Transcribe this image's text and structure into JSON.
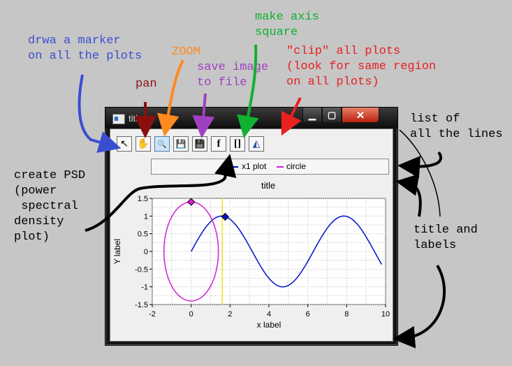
{
  "annotations": {
    "marker": "drwa a marker\non all the plots",
    "pan": "pan",
    "zoom": "ZOOM",
    "save": "save image\nto file",
    "square": "make axis\nsquare",
    "clip": "\"clip\" all plots\n(look for same region\non all plots)",
    "lines": "list of\nall the lines",
    "psd": "create PSD\n(power\n spectral\ndensity\nplot)",
    "labels": "title and\nlabels"
  },
  "annotation_colors": {
    "marker": "#3a4fd0",
    "pan": "#8a1010",
    "zoom": "#ff8a20",
    "save": "#a040c0",
    "square": "#10b030",
    "clip": "#e82020",
    "black": "#000000"
  },
  "window": {
    "title": "title",
    "buttons": {
      "min": "▁",
      "max": "▢",
      "close": "✕"
    }
  },
  "toolbar": {
    "tools": [
      {
        "name": "marker-button",
        "icon": "arrow-cursor-icon",
        "glyph": "↖"
      },
      {
        "name": "pan-button",
        "icon": "hand-icon",
        "glyph": "✋"
      },
      {
        "name": "zoom-button",
        "icon": "magnifier-icon",
        "glyph": "🔍"
      },
      {
        "name": "save-button",
        "icon": "floppy-blue-icon",
        "glyph": "💾"
      },
      {
        "name": "save-all-button",
        "icon": "floppy-black-icon",
        "glyph": "💾"
      },
      {
        "name": "psd-button",
        "icon": "f-icon",
        "glyph": "f"
      },
      {
        "name": "square-axis-button",
        "icon": "brackets-icon",
        "glyph": "[]"
      },
      {
        "name": "clip-button",
        "icon": "3d-grid-icon",
        "glyph": "◭"
      }
    ]
  },
  "legend": {
    "items": [
      {
        "label": "x1 plot",
        "color": "#0010c8"
      },
      {
        "label": "circle",
        "color": "#d020d0"
      }
    ]
  },
  "chart_data": {
    "type": "line",
    "title": "title",
    "xlabel": "x label",
    "ylabel": "Y label",
    "xlim": [
      -2,
      10
    ],
    "ylim": [
      -1.5,
      1.5
    ],
    "xticks": [
      -2,
      0,
      2,
      4,
      6,
      8,
      10
    ],
    "yticks": [
      -1.5,
      -1,
      -0.5,
      0,
      0.5,
      1,
      1.5
    ],
    "grid": true,
    "vline": {
      "x": 1.6,
      "color": "#f0e020"
    },
    "series": [
      {
        "name": "x1 plot",
        "color": "#0010c8",
        "function": "sin",
        "x_start": 0,
        "x_end": 9.8
      },
      {
        "name": "circle",
        "color": "#d020d0",
        "center": [
          0,
          0
        ],
        "rx": 1.4,
        "ry": 1.4
      }
    ],
    "markers": [
      {
        "series": "circle",
        "x": 0,
        "y": 1.4,
        "color": "#d020d0"
      },
      {
        "series": "x1 plot",
        "x": 1.75,
        "y": 0.98,
        "color": "#0010c8"
      }
    ]
  }
}
